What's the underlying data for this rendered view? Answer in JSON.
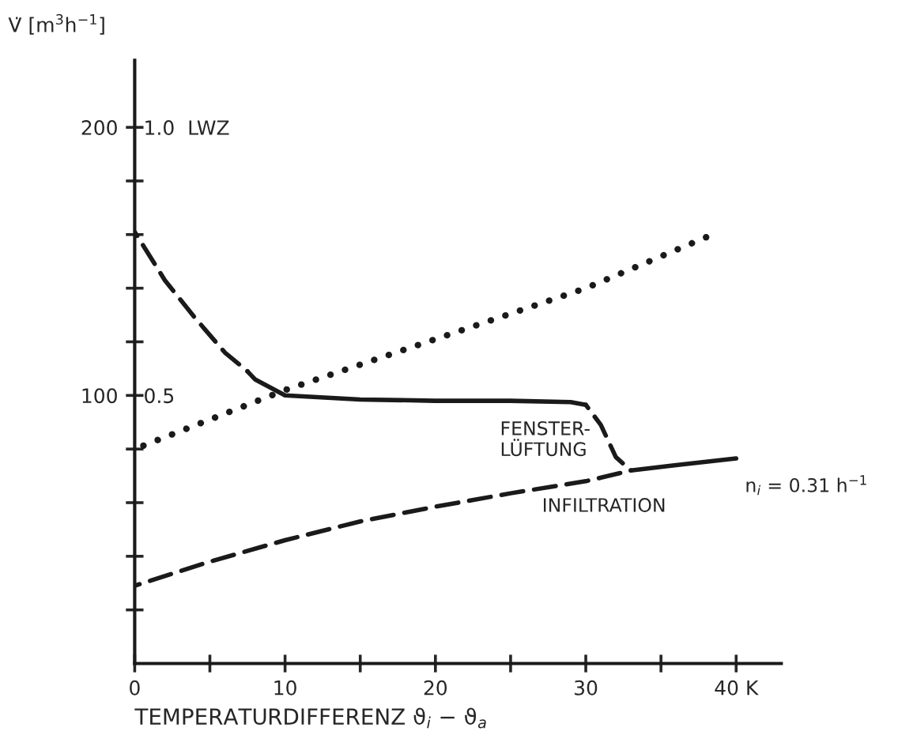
{
  "chart_data": {
    "type": "line",
    "xlabel": "TEMPERATURDIFFERENZ ϑ$_{i}$ − ϑ$_{a}$",
    "ylabel": "V̇ [m$^{3}$h$^{−1}$]",
    "xlim": [
      0,
      43
    ],
    "ylim": [
      0,
      225
    ],
    "y2lim": [
      0,
      1.125
    ],
    "xticks": [
      0,
      {
        "value": 5,
        "label": null
      },
      10,
      {
        "value": 15,
        "label": null
      },
      20,
      {
        "value": 25,
        "label": null
      },
      30,
      {
        "value": 35,
        "label": null
      },
      {
        "value": 40,
        "label": "40 K"
      }
    ],
    "yticks": [
      {
        "value": 20,
        "label": null
      },
      {
        "value": 40,
        "label": null
      },
      {
        "value": 60,
        "label": null
      },
      {
        "value": 80,
        "label": null
      },
      100,
      {
        "value": 120,
        "label": null
      },
      {
        "value": 140,
        "label": null
      },
      {
        "value": 160,
        "label": null
      },
      {
        "value": 180,
        "label": null
      },
      200
    ],
    "y2ticks": [
      0.5,
      {
        "value": 1.0,
        "label": "1.0  LWZ"
      }
    ],
    "grid": false,
    "legend": false,
    "series": [
      {
        "color": "#1a1a1a",
        "line_style": "dashed",
        "x": [
          0,
          2,
          4,
          6,
          7.5
        ],
        "values": [
          161,
          143,
          129,
          116,
          109
        ]
      },
      {
        "color": "#1a1a1a",
        "line_style": "solid",
        "x": [
          7.5,
          8,
          10,
          15,
          20,
          25,
          29,
          30
        ],
        "values": [
          109,
          106,
          100,
          98.5,
          98,
          98,
          97.5,
          96.5
        ]
      },
      {
        "color": "#1a1a1a",
        "line_style": "dashed",
        "x": [
          30,
          31,
          32,
          33
        ],
        "values": [
          96.5,
          89,
          77,
          72
        ]
      },
      {
        "color": "#1a1a1a",
        "line_style": "solid",
        "x": [
          33,
          36,
          40
        ],
        "values": [
          72,
          74,
          76.5
        ]
      },
      {
        "color": "#1a1a1a",
        "line_style": "dashed",
        "x": [
          0,
          5,
          10,
          15,
          20,
          25,
          30,
          33
        ],
        "values": [
          29,
          38,
          46,
          53,
          58.5,
          63.5,
          68,
          72
        ]
      },
      {
        "color": "#1a1a1a",
        "line_style": "dotted",
        "x": [
          0,
          10,
          20,
          30,
          38
        ],
        "values": [
          80,
          102,
          121,
          140,
          159
        ]
      }
    ],
    "annotations": [
      "FENSTER-\nLÜFTUNG",
      "INFILTRATION",
      {
        "text": "n$_{i}$ = 0.31 h$^{−1}$",
        "x": 40,
        "y": 76.5
      }
    ]
  }
}
